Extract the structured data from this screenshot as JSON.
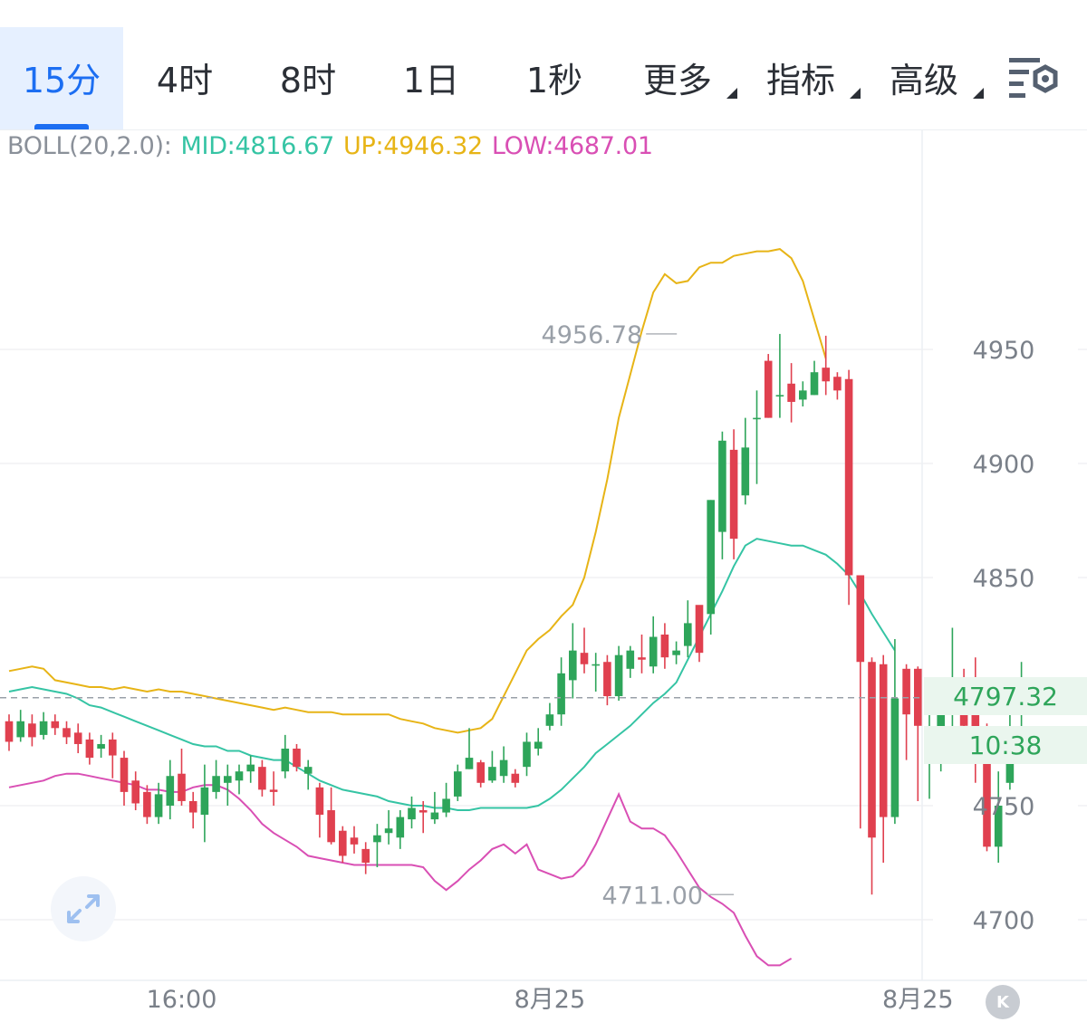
{
  "tabs": [
    {
      "label": "15分",
      "active": true,
      "dropdown": false
    },
    {
      "label": "4时",
      "active": false,
      "dropdown": false
    },
    {
      "label": "8时",
      "active": false,
      "dropdown": false
    },
    {
      "label": "1日",
      "active": false,
      "dropdown": false
    },
    {
      "label": "1秒",
      "active": false,
      "dropdown": false
    },
    {
      "label": "更多",
      "active": false,
      "dropdown": true
    },
    {
      "label": "指标",
      "active": false,
      "dropdown": true
    },
    {
      "label": "高级",
      "active": false,
      "dropdown": true
    }
  ],
  "settings_icon": "chart-settings-icon",
  "legend": {
    "prefix": "BOLL(20,2.0):",
    "mid": "MID:4816.67",
    "up": "UP:4946.32",
    "low": "LOW:4687.01"
  },
  "current_price": "4797.32",
  "countdown": "10:38",
  "expand_icon": "expand-arrows-icon",
  "kline_icon": "k-circle-icon",
  "colors": {
    "up": "#2ea55a",
    "down": "#e0404f",
    "mid": "#35c4a4",
    "upper": "#e7b416",
    "lower": "#d94fb4",
    "active": "#1c6ef2"
  },
  "chart_data": {
    "type": "candlestick",
    "title": "",
    "xlabel": "",
    "ylabel": "",
    "ylim": [
      4680,
      5000
    ],
    "y_ticks": [
      "4950",
      "4900",
      "4850",
      "4750",
      "4700"
    ],
    "x_ticks": [
      {
        "label": "16:00",
        "index": 15
      },
      {
        "label": "8月25",
        "index": 47
      },
      {
        "label": "8月25",
        "index": 79
      }
    ],
    "max_label": {
      "text": "4956.78",
      "index": 56,
      "value": 4956.78
    },
    "min_label": {
      "text": "4711.00",
      "index": 63,
      "value": 4711.0
    },
    "last_price": 4797.32,
    "candles": [
      [
        4787,
        4778,
        4790,
        4774
      ],
      [
        4780,
        4787,
        4792,
        4778
      ],
      [
        4786,
        4780,
        4790,
        4776
      ],
      [
        4781,
        4787,
        4791,
        4779
      ],
      [
        4787,
        4784,
        4790,
        4781
      ],
      [
        4784,
        4780,
        4787,
        4777
      ],
      [
        4782,
        4777,
        4786,
        4773
      ],
      [
        4779,
        4771,
        4782,
        4768
      ],
      [
        4775,
        4777,
        4781,
        4771
      ],
      [
        4779,
        4772,
        4782,
        4762
      ],
      [
        4771,
        4756,
        4774,
        4750
      ],
      [
        4761,
        4751,
        4765,
        4748
      ],
      [
        4756,
        4745,
        4759,
        4742
      ],
      [
        4745,
        4755,
        4760,
        4742
      ],
      [
        4750,
        4763,
        4770,
        4744
      ],
      [
        4764,
        4752,
        4775,
        4750
      ],
      [
        4752,
        4747,
        4756,
        4740
      ],
      [
        4746,
        4758,
        4768,
        4734
      ],
      [
        4756,
        4763,
        4770,
        4753
      ],
      [
        4760,
        4763,
        4768,
        4750
      ],
      [
        4761,
        4765,
        4768,
        4755
      ],
      [
        4765,
        4768,
        4772,
        4760
      ],
      [
        4767,
        4757,
        4770,
        4754
      ],
      [
        4757,
        4756,
        4765,
        4750
      ],
      [
        4765,
        4775,
        4781,
        4762
      ],
      [
        4775,
        4767,
        4777,
        4765
      ],
      [
        4764,
        4767,
        4770,
        4757
      ],
      [
        4758,
        4746,
        4760,
        4736
      ],
      [
        4748,
        4734,
        4758,
        4733
      ],
      [
        4739,
        4728,
        4741,
        4725
      ],
      [
        4736,
        4733,
        4741,
        4729
      ],
      [
        4731,
        4725,
        4734,
        4720
      ],
      [
        4734,
        4737,
        4742,
        4723
      ],
      [
        4738,
        4740,
        4748,
        4733
      ],
      [
        4736,
        4745,
        4748,
        4731
      ],
      [
        4744,
        4749,
        4754,
        4740
      ],
      [
        4748,
        4747,
        4752,
        4738
      ],
      [
        4744,
        4747,
        4756,
        4742
      ],
      [
        4747,
        4753,
        4760,
        4745
      ],
      [
        4754,
        4765,
        4768,
        4752
      ],
      [
        4766,
        4771,
        4784,
        4766
      ],
      [
        4769,
        4760,
        4770,
        4758
      ],
      [
        4761,
        4767,
        4774,
        4760
      ],
      [
        4763,
        4770,
        4776,
        4760
      ],
      [
        4764,
        4760,
        4766,
        4758
      ],
      [
        4767,
        4778,
        4782,
        4763
      ],
      [
        4775,
        4778,
        4784,
        4772
      ],
      [
        4785,
        4790,
        4795,
        4783
      ],
      [
        4790,
        4808,
        4815,
        4785
      ],
      [
        4805,
        4818,
        4830,
        4797
      ],
      [
        4817,
        4812,
        4828,
        4808
      ],
      [
        4812,
        4812,
        4817,
        4800
      ],
      [
        4813,
        4798,
        4816,
        4794
      ],
      [
        4798,
        4816,
        4820,
        4796
      ],
      [
        4810,
        4818,
        4820,
        4806
      ],
      [
        4815,
        4814,
        4825,
        4808
      ],
      [
        4811,
        4824,
        4833,
        4808
      ],
      [
        4825,
        4815,
        4830,
        4810
      ],
      [
        4816,
        4818,
        4822,
        4812
      ],
      [
        4820,
        4830,
        4840,
        4815
      ],
      [
        4838,
        4817,
        4830,
        4813
      ],
      [
        4834,
        4884,
        4884,
        4825
      ],
      [
        4870,
        4910,
        4914,
        4858
      ],
      [
        4906,
        4867,
        4915,
        4858
      ],
      [
        4886,
        4907,
        4920,
        4882
      ],
      [
        4920,
        4920,
        4932,
        4891
      ],
      [
        4945,
        4920,
        4948,
        4920
      ],
      [
        4930,
        4930,
        4956.78,
        4920
      ],
      [
        4935,
        4927,
        4944,
        4918
      ],
      [
        4928,
        4932,
        4936,
        4925
      ],
      [
        4930,
        4940,
        4945,
        4930
      ],
      [
        4942,
        4936,
        4956,
        4930
      ],
      [
        4938,
        4932,
        4940,
        4928
      ],
      [
        4937,
        4851,
        4941,
        4838
      ],
      [
        4851,
        4813,
        4851,
        4740
      ],
      [
        4813,
        4736,
        4815,
        4711
      ],
      [
        4812,
        4745,
        4816,
        4725
      ],
      [
        4745,
        4797,
        4823,
        4742
      ],
      [
        4810,
        4790,
        4812,
        4770
      ],
      [
        4810,
        4785,
        4811,
        4752
      ],
      [
        4780,
        4783,
        4793,
        4753
      ],
      [
        4783,
        4795,
        4800,
        4765
      ],
      [
        4795,
        4795,
        4828,
        4775
      ],
      [
        4795,
        4785,
        4810,
        4770
      ],
      [
        4795,
        4775,
        4815,
        4760
      ],
      [
        4780,
        4732,
        4786,
        4730
      ],
      [
        4732,
        4750,
        4765,
        4725
      ],
      [
        4760,
        4783,
        4790,
        4757
      ],
      [
        4796,
        4806,
        4813,
        4784
      ],
      [
        4798,
        4802,
        4805,
        4792
      ]
    ],
    "mid_band": [
      [
        0,
        4800
      ],
      [
        1,
        4801
      ],
      [
        2,
        4802
      ],
      [
        3,
        4801
      ],
      [
        4,
        4800
      ],
      [
        5,
        4799
      ],
      [
        6,
        4797
      ],
      [
        7,
        4794
      ],
      [
        8,
        4793
      ],
      [
        9,
        4791
      ],
      [
        10,
        4789
      ],
      [
        11,
        4787
      ],
      [
        12,
        4785
      ],
      [
        13,
        4783
      ],
      [
        14,
        4781
      ],
      [
        15,
        4779
      ],
      [
        16,
        4777
      ],
      [
        17,
        4776
      ],
      [
        18,
        4776
      ],
      [
        19,
        4774
      ],
      [
        20,
        4774
      ],
      [
        21,
        4772
      ],
      [
        22,
        4771
      ],
      [
        23,
        4770
      ],
      [
        24,
        4770
      ],
      [
        25,
        4767
      ],
      [
        26,
        4764
      ],
      [
        27,
        4761
      ],
      [
        28,
        4759
      ],
      [
        29,
        4757
      ],
      [
        30,
        4756
      ],
      [
        31,
        4755
      ],
      [
        32,
        4754
      ],
      [
        33,
        4752
      ],
      [
        34,
        4751
      ],
      [
        35,
        4750
      ],
      [
        36,
        4750
      ],
      [
        37,
        4749
      ],
      [
        38,
        4749
      ],
      [
        39,
        4748
      ],
      [
        40,
        4748
      ],
      [
        41,
        4749
      ],
      [
        42,
        4749
      ],
      [
        43,
        4749
      ],
      [
        44,
        4749
      ],
      [
        45,
        4749
      ],
      [
        46,
        4750
      ],
      [
        47,
        4753
      ],
      [
        48,
        4757
      ],
      [
        49,
        4762
      ],
      [
        50,
        4767
      ],
      [
        51,
        4773
      ],
      [
        52,
        4777
      ],
      [
        53,
        4781
      ],
      [
        54,
        4785
      ],
      [
        55,
        4790
      ],
      [
        56,
        4795
      ],
      [
        57,
        4799
      ],
      [
        58,
        4804
      ],
      [
        59,
        4814
      ],
      [
        60,
        4824
      ],
      [
        61,
        4834
      ],
      [
        62,
        4844
      ],
      [
        63,
        4855
      ],
      [
        64,
        4864
      ],
      [
        65,
        4867
      ],
      [
        66,
        4866
      ],
      [
        67,
        4865
      ],
      [
        68,
        4864
      ],
      [
        69,
        4864
      ],
      [
        70,
        4862
      ],
      [
        71,
        4860
      ],
      [
        72,
        4856
      ],
      [
        73,
        4851
      ],
      [
        74,
        4843
      ],
      [
        75,
        4834
      ],
      [
        76,
        4826
      ],
      [
        77,
        4818
      ]
    ],
    "upper_band": [
      [
        0,
        4809
      ],
      [
        1,
        4810
      ],
      [
        2,
        4811
      ],
      [
        3,
        4810
      ],
      [
        4,
        4805
      ],
      [
        5,
        4804
      ],
      [
        6,
        4803
      ],
      [
        7,
        4802
      ],
      [
        8,
        4802
      ],
      [
        9,
        4801
      ],
      [
        10,
        4802
      ],
      [
        11,
        4801
      ],
      [
        12,
        4800
      ],
      [
        13,
        4801
      ],
      [
        14,
        4800
      ],
      [
        15,
        4800
      ],
      [
        16,
        4799
      ],
      [
        17,
        4798
      ],
      [
        18,
        4797
      ],
      [
        19,
        4796
      ],
      [
        20,
        4795
      ],
      [
        21,
        4794
      ],
      [
        22,
        4793
      ],
      [
        23,
        4792
      ],
      [
        24,
        4793
      ],
      [
        25,
        4792
      ],
      [
        26,
        4791
      ],
      [
        27,
        4791
      ],
      [
        28,
        4791
      ],
      [
        29,
        4790
      ],
      [
        30,
        4790
      ],
      [
        31,
        4790
      ],
      [
        32,
        4790
      ],
      [
        33,
        4790
      ],
      [
        34,
        4788
      ],
      [
        35,
        4787
      ],
      [
        36,
        4786
      ],
      [
        37,
        4784
      ],
      [
        38,
        4783
      ],
      [
        39,
        4782
      ],
      [
        40,
        4783
      ],
      [
        41,
        4784
      ],
      [
        42,
        4788
      ],
      [
        43,
        4798
      ],
      [
        44,
        4808
      ],
      [
        45,
        4818
      ],
      [
        46,
        4823
      ],
      [
        47,
        4827
      ],
      [
        48,
        4833
      ],
      [
        49,
        4838
      ],
      [
        50,
        4850
      ],
      [
        51,
        4870
      ],
      [
        52,
        4893
      ],
      [
        53,
        4920
      ],
      [
        54,
        4939
      ],
      [
        55,
        4958
      ],
      [
        56,
        4975
      ],
      [
        57,
        4983
      ],
      [
        58,
        4979
      ],
      [
        59,
        4980
      ],
      [
        60,
        4986
      ],
      [
        61,
        4988
      ],
      [
        62,
        4988
      ],
      [
        63,
        4991
      ],
      [
        64,
        4992
      ],
      [
        65,
        4993
      ],
      [
        66,
        4993
      ],
      [
        67,
        4994
      ],
      [
        68,
        4990
      ],
      [
        69,
        4980
      ],
      [
        70,
        4963
      ],
      [
        71,
        4946
      ]
    ],
    "lower_band": [
      [
        0,
        4758
      ],
      [
        1,
        4759
      ],
      [
        2,
        4760
      ],
      [
        3,
        4761
      ],
      [
        4,
        4763
      ],
      [
        5,
        4764
      ],
      [
        6,
        4764
      ],
      [
        7,
        4763
      ],
      [
        8,
        4762
      ],
      [
        9,
        4761
      ],
      [
        10,
        4760
      ],
      [
        11,
        4759
      ],
      [
        12,
        4757
      ],
      [
        13,
        4757
      ],
      [
        14,
        4756
      ],
      [
        15,
        4756
      ],
      [
        16,
        4758
      ],
      [
        17,
        4759
      ],
      [
        18,
        4759
      ],
      [
        19,
        4757
      ],
      [
        20,
        4753
      ],
      [
        21,
        4748
      ],
      [
        22,
        4742
      ],
      [
        23,
        4738
      ],
      [
        24,
        4735
      ],
      [
        25,
        4732
      ],
      [
        26,
        4728
      ],
      [
        27,
        4727
      ],
      [
        28,
        4726
      ],
      [
        29,
        4725
      ],
      [
        30,
        4724
      ],
      [
        31,
        4724
      ],
      [
        32,
        4724
      ],
      [
        33,
        4724
      ],
      [
        34,
        4724
      ],
      [
        35,
        4724
      ],
      [
        36,
        4723
      ],
      [
        37,
        4717
      ],
      [
        38,
        4713
      ],
      [
        39,
        4717
      ],
      [
        40,
        4722
      ],
      [
        41,
        4726
      ],
      [
        42,
        4731
      ],
      [
        43,
        4733
      ],
      [
        44,
        4729
      ],
      [
        45,
        4733
      ],
      [
        46,
        4722
      ],
      [
        47,
        4720
      ],
      [
        48,
        4718
      ],
      [
        49,
        4719
      ],
      [
        50,
        4724
      ],
      [
        51,
        4733
      ],
      [
        52,
        4744
      ],
      [
        53,
        4755
      ],
      [
        54,
        4743
      ],
      [
        55,
        4740
      ],
      [
        56,
        4740
      ],
      [
        57,
        4737
      ],
      [
        58,
        4730
      ],
      [
        59,
        4722
      ],
      [
        60,
        4714
      ],
      [
        61,
        4710
      ],
      [
        62,
        4707
      ],
      [
        63,
        4703
      ],
      [
        64,
        4693
      ],
      [
        65,
        4684
      ],
      [
        66,
        4680
      ],
      [
        67,
        4680
      ],
      [
        68,
        4683
      ]
    ]
  }
}
